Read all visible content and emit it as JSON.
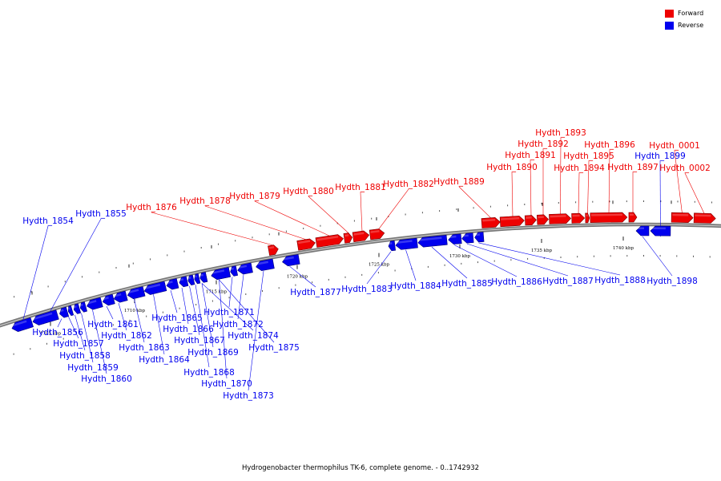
{
  "legend": {
    "forward": {
      "label": "Forward",
      "color": "#ee0000"
    },
    "reverse": {
      "label": "Reverse",
      "color": "#0000ee"
    }
  },
  "footer": {
    "caption": "Hydrogenobacter thermophilus TK-6, complete genome. - 0..1742932"
  },
  "ticks": [
    {
      "label": "1705 kbp"
    },
    {
      "label": "1710 kbp"
    },
    {
      "label": "1715 kbp"
    },
    {
      "label": "1720 kbp"
    },
    {
      "label": "1725 kbp"
    },
    {
      "label": "1730 kbp"
    },
    {
      "label": "1735 kbp"
    },
    {
      "label": "1740 kbp"
    }
  ],
  "genes": [
    {
      "name": "Hydth_1854",
      "strand": "reverse"
    },
    {
      "name": "Hydth_1855",
      "strand": "reverse"
    },
    {
      "name": "Hydth_1856",
      "strand": "reverse"
    },
    {
      "name": "Hydth_1857",
      "strand": "reverse"
    },
    {
      "name": "Hydth_1858",
      "strand": "reverse"
    },
    {
      "name": "Hydth_1859",
      "strand": "reverse"
    },
    {
      "name": "Hydth_1860",
      "strand": "reverse"
    },
    {
      "name": "Hydth_1861",
      "strand": "reverse"
    },
    {
      "name": "Hydth_1862",
      "strand": "reverse"
    },
    {
      "name": "Hydth_1863",
      "strand": "reverse"
    },
    {
      "name": "Hydth_1864",
      "strand": "reverse"
    },
    {
      "name": "Hydth_1865",
      "strand": "reverse"
    },
    {
      "name": "Hydth_1866",
      "strand": "reverse"
    },
    {
      "name": "Hydth_1867",
      "strand": "reverse"
    },
    {
      "name": "Hydth_1868",
      "strand": "reverse"
    },
    {
      "name": "Hydth_1869",
      "strand": "reverse"
    },
    {
      "name": "Hydth_1870",
      "strand": "reverse"
    },
    {
      "name": "Hydth_1871",
      "strand": "reverse"
    },
    {
      "name": "Hydth_1872",
      "strand": "reverse"
    },
    {
      "name": "Hydth_1873",
      "strand": "reverse"
    },
    {
      "name": "Hydth_1874",
      "strand": "reverse"
    },
    {
      "name": "Hydth_1875",
      "strand": "reverse"
    },
    {
      "name": "Hydth_1876",
      "strand": "forward"
    },
    {
      "name": "Hydth_1877",
      "strand": "reverse"
    },
    {
      "name": "Hydth_1878",
      "strand": "forward"
    },
    {
      "name": "Hydth_1879",
      "strand": "forward"
    },
    {
      "name": "Hydth_1880",
      "strand": "forward"
    },
    {
      "name": "Hydth_1881",
      "strand": "forward"
    },
    {
      "name": "Hydth_1882",
      "strand": "forward"
    },
    {
      "name": "Hydth_1883",
      "strand": "reverse"
    },
    {
      "name": "Hydth_1884",
      "strand": "reverse"
    },
    {
      "name": "Hydth_1885",
      "strand": "reverse"
    },
    {
      "name": "Hydth_1886",
      "strand": "reverse"
    },
    {
      "name": "Hydth_1887",
      "strand": "reverse"
    },
    {
      "name": "Hydth_1888",
      "strand": "reverse"
    },
    {
      "name": "Hydth_1889",
      "strand": "forward"
    },
    {
      "name": "Hydth_1890",
      "strand": "forward"
    },
    {
      "name": "Hydth_1891",
      "strand": "forward"
    },
    {
      "name": "Hydth_1892",
      "strand": "forward"
    },
    {
      "name": "Hydth_1893",
      "strand": "forward"
    },
    {
      "name": "Hydth_1894",
      "strand": "forward"
    },
    {
      "name": "Hydth_1895",
      "strand": "forward"
    },
    {
      "name": "Hydth_1896",
      "strand": "forward"
    },
    {
      "name": "Hydth_1897",
      "strand": "forward"
    },
    {
      "name": "Hydth_1898",
      "strand": "reverse"
    },
    {
      "name": "Hydth_1899",
      "strand": "reverse"
    },
    {
      "name": "Hydth_0001",
      "strand": "forward"
    },
    {
      "name": "Hydth_0002",
      "strand": "forward"
    }
  ]
}
